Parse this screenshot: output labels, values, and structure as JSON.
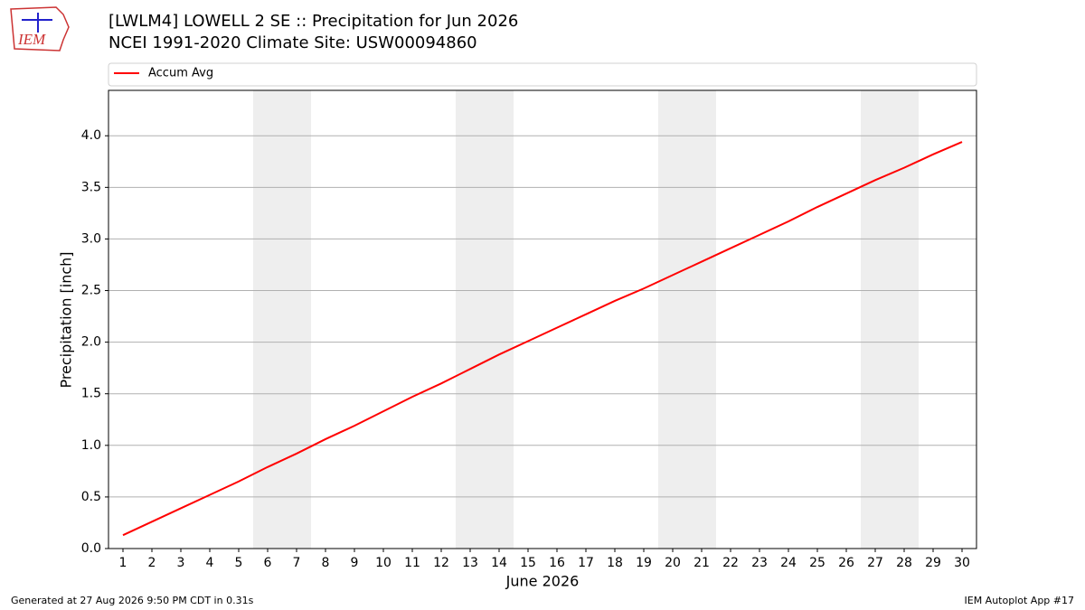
{
  "chart_data": {
    "type": "line",
    "title": "[LWLM4] LOWELL 2 SE :: Precipitation for Jun 2026",
    "subtitle": "NCEI 1991-2020 Climate Site: USW00094860",
    "x_label": "June 2026",
    "y_label": "Precipitation [inch]",
    "x": [
      1,
      2,
      3,
      4,
      5,
      6,
      7,
      8,
      9,
      10,
      11,
      12,
      13,
      14,
      15,
      16,
      17,
      18,
      19,
      20,
      21,
      22,
      23,
      24,
      25,
      26,
      27,
      28,
      29,
      30
    ],
    "series": [
      {
        "name": "Accum Avg",
        "color": "#ff0000",
        "values": [
          0.13,
          0.26,
          0.39,
          0.52,
          0.65,
          0.79,
          0.92,
          1.06,
          1.19,
          1.33,
          1.47,
          1.6,
          1.74,
          1.88,
          2.01,
          2.14,
          2.27,
          2.4,
          2.52,
          2.65,
          2.78,
          2.91,
          3.04,
          3.17,
          3.31,
          3.44,
          3.57,
          3.69,
          3.82,
          3.94
        ]
      }
    ],
    "xlim": [
      0.5,
      30.5
    ],
    "xticks": [
      1,
      2,
      3,
      4,
      5,
      6,
      7,
      8,
      9,
      10,
      11,
      12,
      13,
      14,
      15,
      16,
      17,
      18,
      19,
      20,
      21,
      22,
      23,
      24,
      25,
      26,
      27,
      28,
      29,
      30
    ],
    "ylim": [
      0,
      4.44
    ],
    "yticks": [
      {
        "value": 0,
        "label": "0.0"
      },
      {
        "value": 0.5,
        "label": "0.5"
      },
      {
        "value": 1,
        "label": "1.0"
      },
      {
        "value": 1.5,
        "label": "1.5"
      },
      {
        "value": 2,
        "label": "2.0"
      },
      {
        "value": 2.5,
        "label": "2.5"
      },
      {
        "value": 3,
        "label": "3.0"
      },
      {
        "value": 3.5,
        "label": "3.5"
      },
      {
        "value": 4,
        "label": "4.0"
      }
    ],
    "grid": "y",
    "legend": "top",
    "shaded_x_ranges": [
      [
        5.5,
        7.5
      ],
      [
        12.5,
        14.5
      ],
      [
        19.5,
        21.5
      ],
      [
        26.5,
        28.5
      ]
    ],
    "shade_color": "#eeeeee"
  },
  "logo": {
    "text": "IEM"
  },
  "footer": {
    "left": "Generated at 27 Aug 2026 9:50 PM CDT in 0.31s",
    "right": "IEM Autoplot App #17"
  }
}
